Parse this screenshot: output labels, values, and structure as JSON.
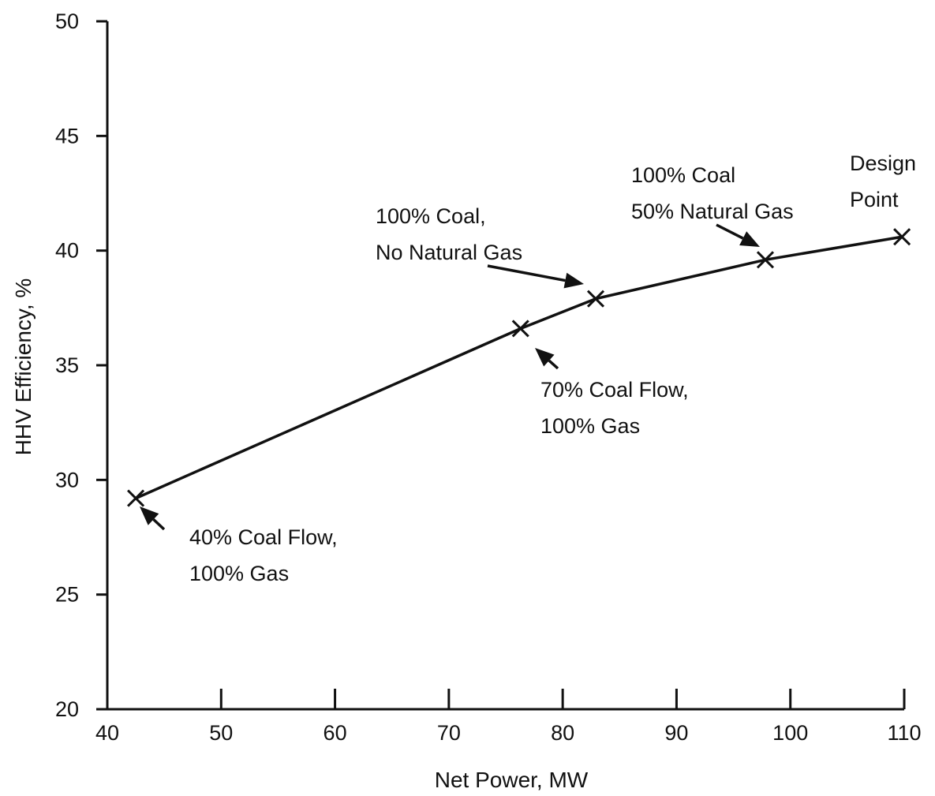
{
  "chart_data": {
    "type": "line",
    "title": "",
    "xlabel": "Net Power, MW",
    "ylabel": "HHV Efficiency, %",
    "xlim": [
      40,
      110
    ],
    "ylim": [
      20,
      50
    ],
    "x_ticks": [
      40,
      50,
      60,
      70,
      80,
      90,
      100,
      110
    ],
    "y_ticks": [
      20,
      25,
      30,
      35,
      40,
      45,
      50
    ],
    "grid": false,
    "legend": "none",
    "line_color": "#111111",
    "series": [
      {
        "points": [
          {
            "x": 42.5,
            "y": 29.2
          },
          {
            "x": 76.3,
            "y": 36.6
          },
          {
            "x": 82.9,
            "y": 37.9
          },
          {
            "x": 97.8,
            "y": 39.6
          },
          {
            "x": 109.8,
            "y": 40.6
          }
        ]
      }
    ],
    "annotations": [
      {
        "lines": [
          "40% Coal Flow,",
          "100% Gas"
        ],
        "point_index": 0
      },
      {
        "lines": [
          "70% Coal Flow,",
          "100% Gas"
        ],
        "point_index": 1
      },
      {
        "lines": [
          "100% Coal,",
          "No Natural Gas"
        ],
        "point_index": 2
      },
      {
        "lines": [
          "100% Coal",
          "50% Natural Gas"
        ],
        "point_index": 3
      },
      {
        "lines": [
          "Design",
          "Point"
        ],
        "point_index": 4
      }
    ]
  }
}
